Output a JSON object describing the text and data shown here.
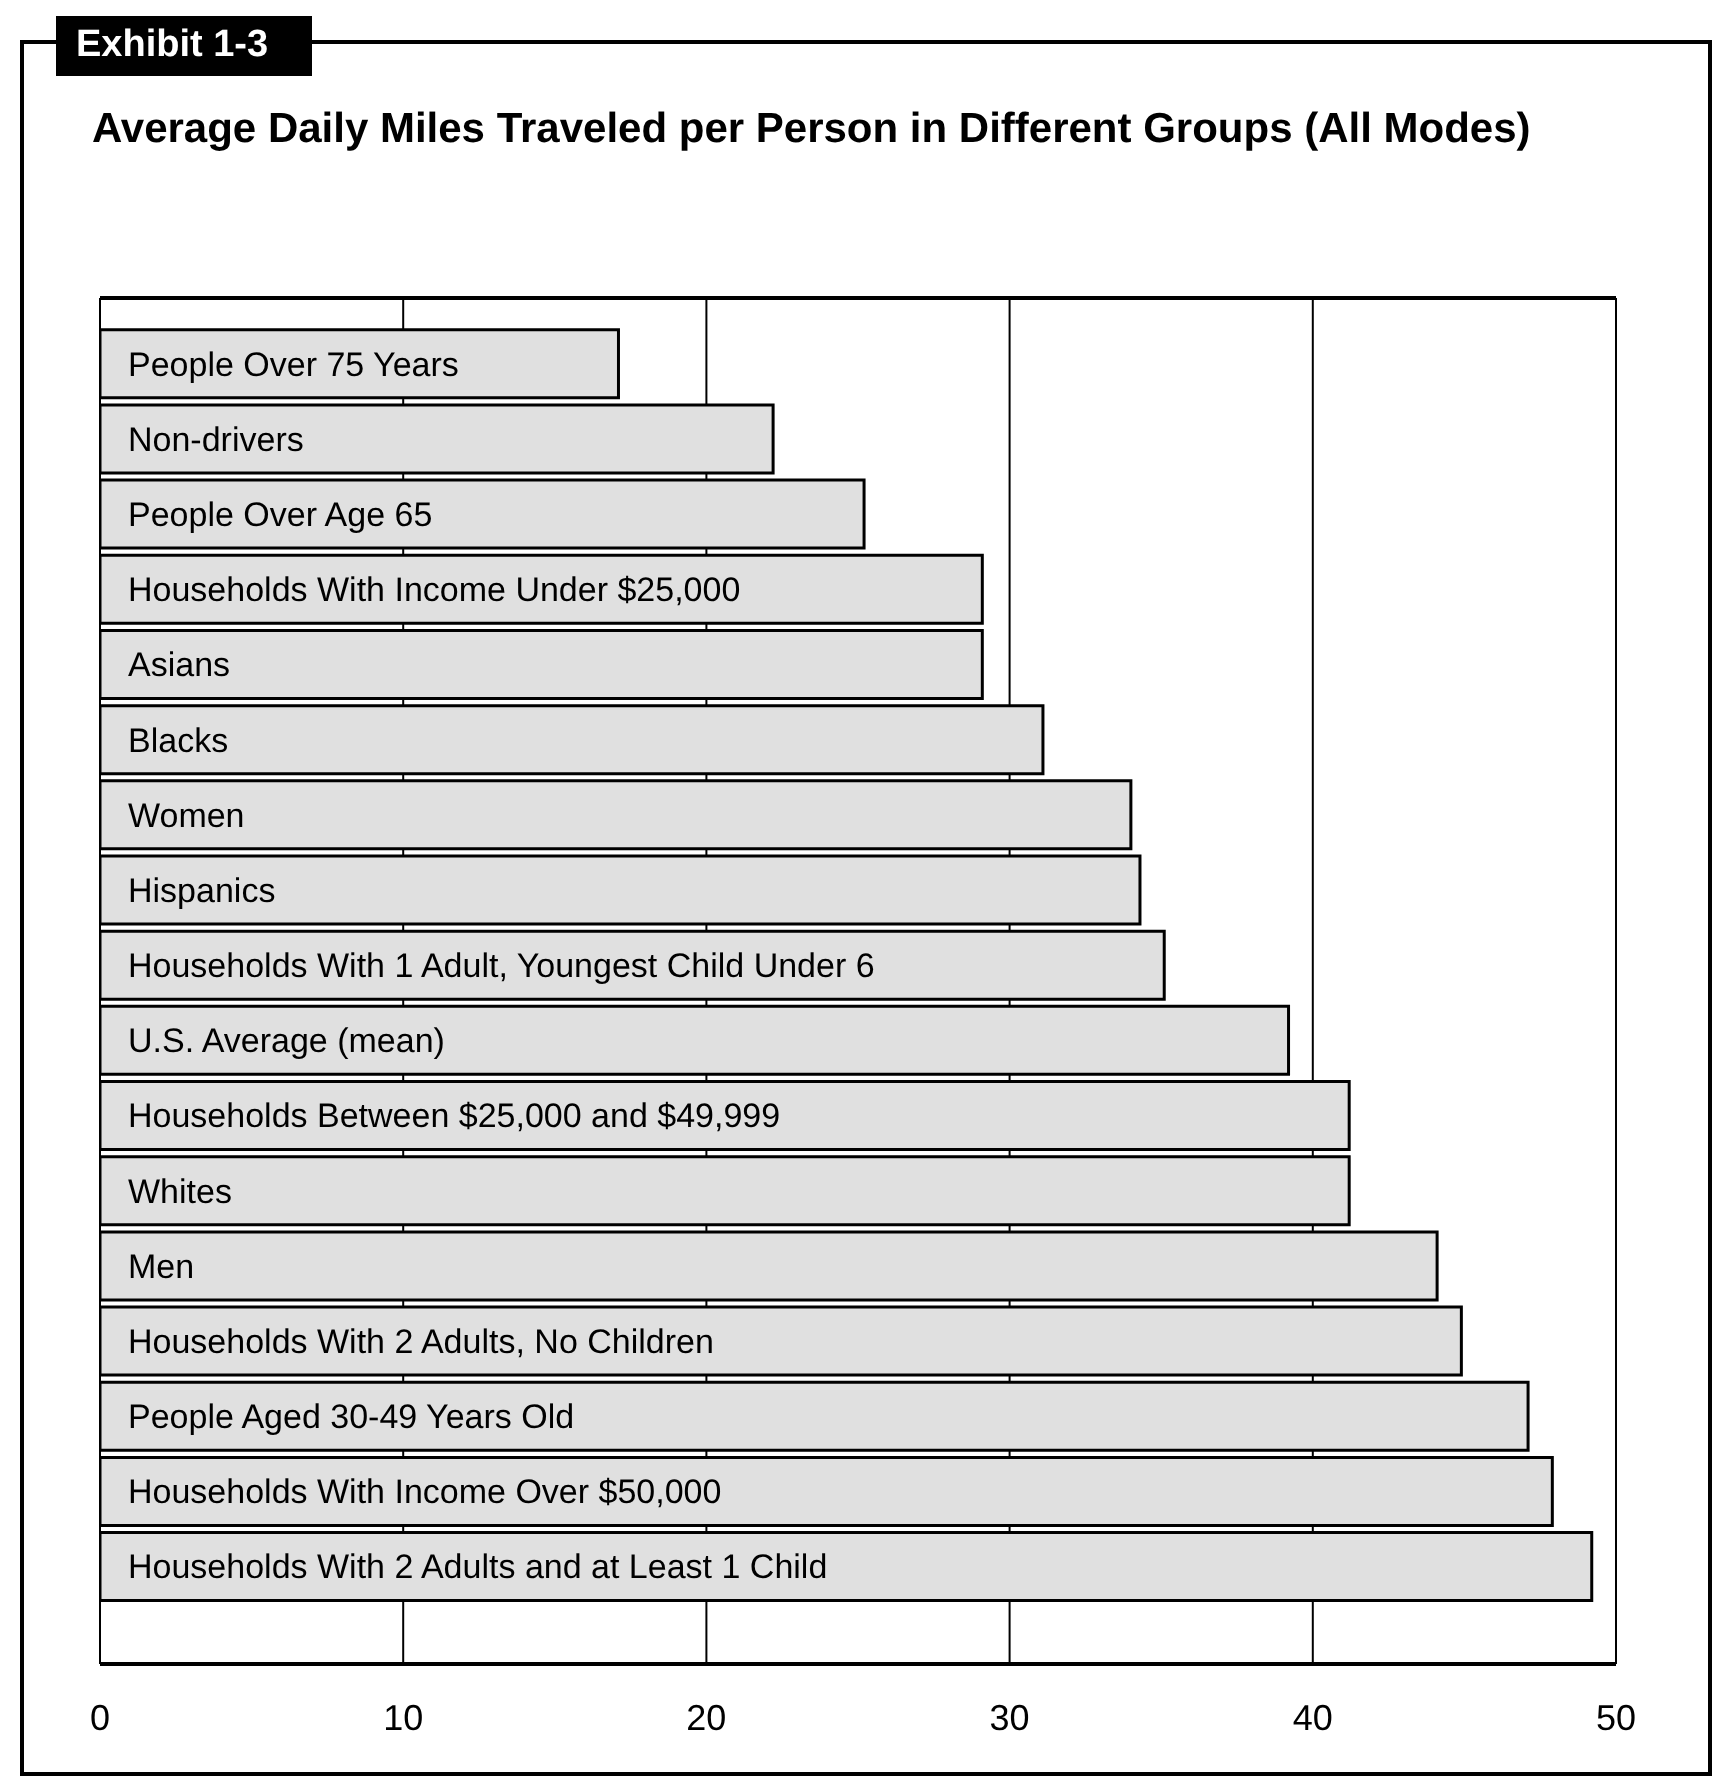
{
  "chart_data": {
    "type": "bar",
    "orientation": "horizontal",
    "title": "Average Daily Miles Traveled per Person in Different Groups (All Modes)",
    "annotations": [
      "Exhibit 1-3"
    ],
    "categories": [
      "People Over 75 Years",
      "Non-drivers",
      "People Over Age 65",
      "Households With Income Under $25,000",
      "Asians",
      "Blacks",
      "Women",
      "Hispanics",
      "Households With 1 Adult, Youngest Child Under 6",
      "U.S.  Average (mean)",
      "Households Between $25,000 and $49,999",
      "Whites",
      "Men",
      "Households With 2 Adults, No Children",
      "People Aged 30-49 Years Old",
      "Households With Income Over $50,000",
      "Households With 2 Adults and at Least 1 Child"
    ],
    "values": [
      17.1,
      22.2,
      25.2,
      29.1,
      29.1,
      31.1,
      34.0,
      34.3,
      35.1,
      39.2,
      41.2,
      41.2,
      44.1,
      44.9,
      47.1,
      47.9,
      49.2
    ],
    "color": "#e0e0e0",
    "xlim": [
      0,
      50
    ],
    "xticks": [
      0,
      10,
      20,
      30,
      40,
      50
    ],
    "grid": "x"
  }
}
